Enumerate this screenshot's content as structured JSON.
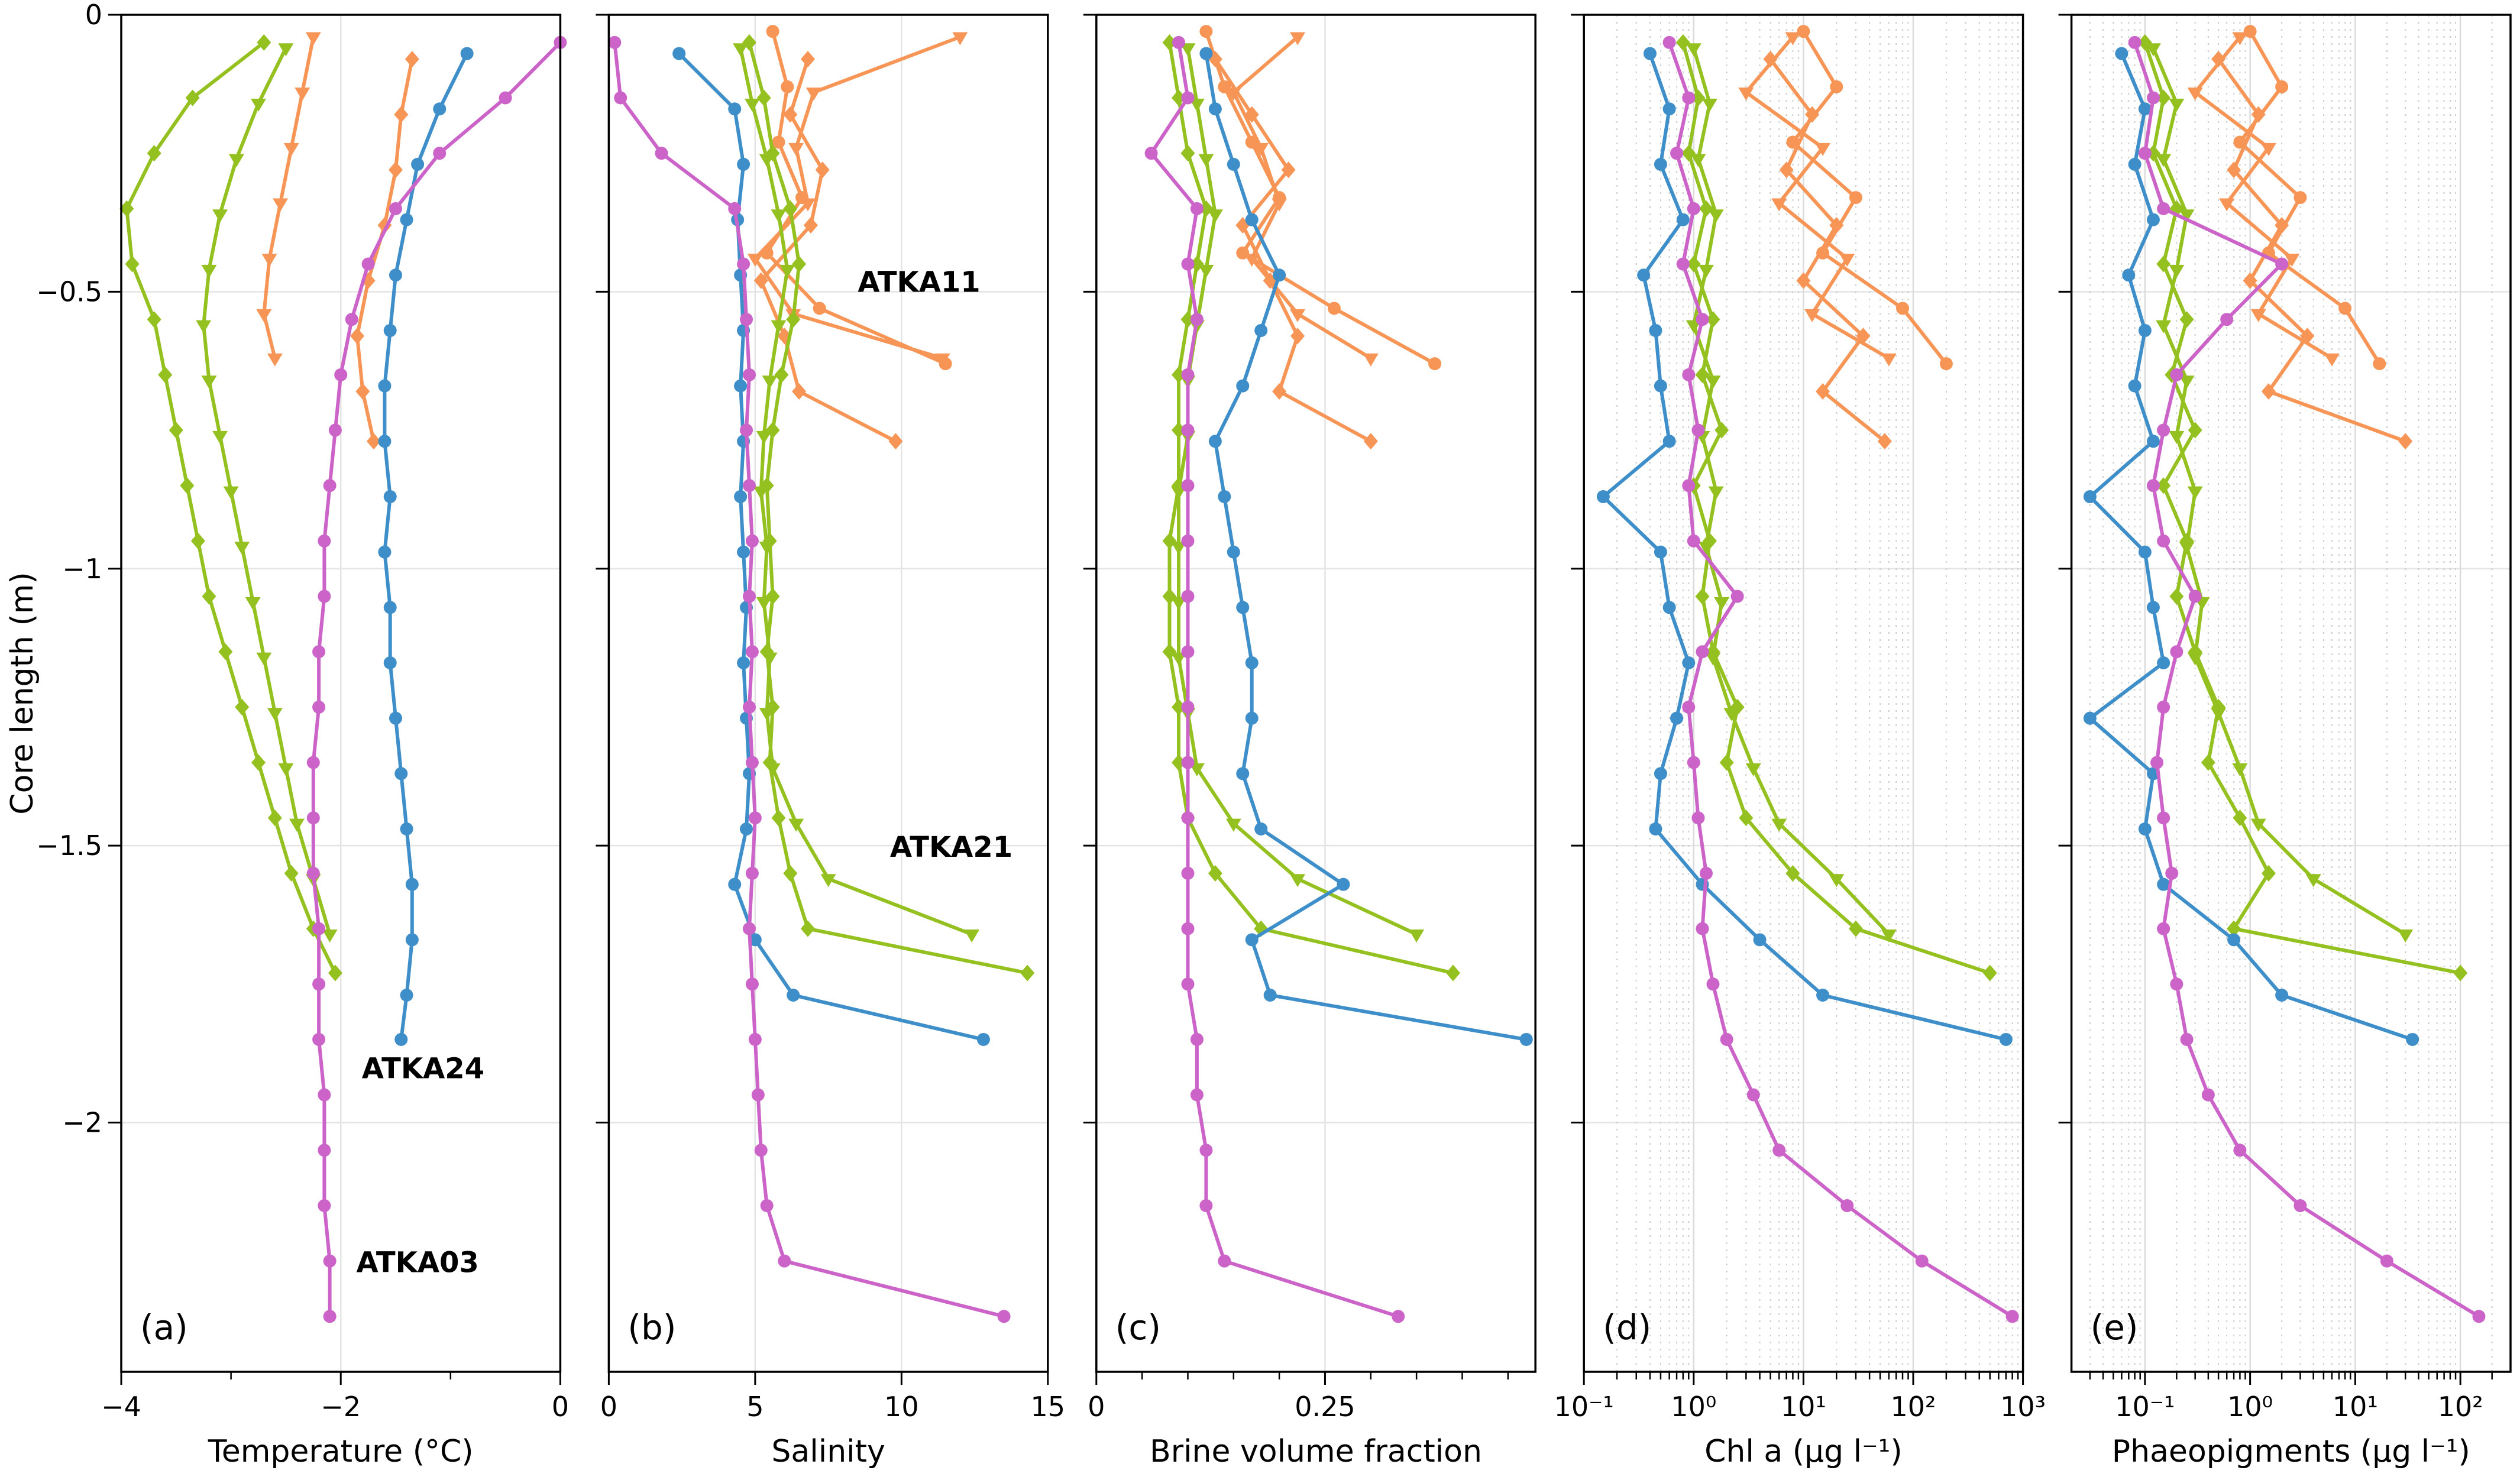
{
  "figure": {
    "kind": "five-panel sea-ice core profile figure"
  },
  "chart_data": {
    "type": "line",
    "orientation": "vertical-profiles",
    "y_axis": {
      "label": "Core length (m)",
      "range": [
        0,
        -2.45
      ],
      "ticks": [
        {
          "v": 0,
          "label": "0"
        },
        {
          "v": -0.5,
          "label": "−0.5"
        },
        {
          "v": -1,
          "label": "−1"
        },
        {
          "v": -1.5,
          "label": "−1.5"
        },
        {
          "v": -2,
          "label": "−2"
        }
      ]
    },
    "stations": {
      "ATKA03": {
        "label": "ATKA03",
        "color": "#CB63C8",
        "marker": "circle",
        "depths": [
          -0.05,
          -0.15,
          -0.25,
          -0.35,
          -0.45,
          -0.55,
          -0.65,
          -0.75,
          -0.85,
          -0.95,
          -1.05,
          -1.15,
          -1.25,
          -1.35,
          -1.45,
          -1.55,
          -1.65,
          -1.75,
          -1.85,
          -1.95,
          -2.05,
          -2.15,
          -2.25,
          -2.35
        ]
      },
      "ATKA24": {
        "label": "ATKA24",
        "color": "#3D8EC9",
        "marker": "circle",
        "depths": [
          -0.07,
          -0.17,
          -0.27,
          -0.37,
          -0.47,
          -0.57,
          -0.67,
          -0.77,
          -0.87,
          -0.97,
          -1.07,
          -1.17,
          -1.27,
          -1.37,
          -1.47,
          -1.57,
          -1.67,
          -1.77,
          -1.85
        ]
      },
      "ATKA21_A": {
        "label": "ATKA21",
        "color": "#94C11F",
        "marker": "diamond",
        "depths": [
          -0.05,
          -0.15,
          -0.25,
          -0.35,
          -0.45,
          -0.55,
          -0.65,
          -0.75,
          -0.85,
          -0.95,
          -1.05,
          -1.15,
          -1.25,
          -1.35,
          -1.45,
          -1.55,
          -1.65,
          -1.73
        ]
      },
      "ATKA21_B": {
        "label": "ATKA21",
        "color": "#94C11F",
        "marker": "triangle",
        "depths": [
          -0.06,
          -0.16,
          -0.26,
          -0.36,
          -0.46,
          -0.56,
          -0.66,
          -0.76,
          -0.86,
          -0.96,
          -1.06,
          -1.16,
          -1.26,
          -1.36,
          -1.46,
          -1.56,
          -1.66
        ]
      },
      "ATKA11_A": {
        "label": "ATKA11",
        "color": "#F79556",
        "marker": "triangle",
        "depths": [
          -0.04,
          -0.14,
          -0.24,
          -0.34,
          -0.44,
          -0.54,
          -0.62
        ]
      },
      "ATKA11_B": {
        "label": "ATKA11",
        "color": "#F79556",
        "marker": "diamond",
        "depths": [
          -0.08,
          -0.18,
          -0.28,
          -0.38,
          -0.48,
          -0.58,
          -0.68,
          -0.77
        ]
      },
      "ATKA11_C": {
        "label": "ATKA11",
        "color": "#F79556",
        "marker": "circle",
        "depths": [
          -0.03,
          -0.13,
          -0.23,
          -0.33,
          -0.43,
          -0.53,
          -0.63
        ]
      }
    },
    "panels": [
      {
        "id": "a",
        "letter": "(a)",
        "xlabel": "Temperature (°C)",
        "scale": "linear",
        "xlim": [
          -4,
          0
        ],
        "xticks": [
          {
            "v": -4,
            "label": "−4"
          },
          {
            "v": -2,
            "label": "−2"
          },
          {
            "v": 0,
            "label": "0"
          }
        ],
        "xminor": [
          -3,
          -1
        ],
        "series": [
          {
            "station": "ATKA11_A",
            "x": [
              -2.25,
              -2.35,
              -2.45,
              -2.55,
              -2.65,
              -2.7,
              -2.6
            ]
          },
          {
            "station": "ATKA11_B",
            "x": [
              -1.35,
              -1.45,
              -1.5,
              -1.6,
              -1.75,
              -1.85,
              -1.8,
              -1.7
            ]
          },
          {
            "station": "ATKA21_A",
            "x": [
              -2.7,
              -3.35,
              -3.7,
              -3.95,
              -3.9,
              -3.7,
              -3.6,
              -3.5,
              -3.4,
              -3.3,
              -3.2,
              -3.05,
              -2.9,
              -2.75,
              -2.6,
              -2.45,
              -2.25,
              -2.05
            ]
          },
          {
            "station": "ATKA21_B",
            "x": [
              -2.5,
              -2.75,
              -2.95,
              -3.1,
              -3.2,
              -3.25,
              -3.2,
              -3.1,
              -3.0,
              -2.9,
              -2.8,
              -2.7,
              -2.6,
              -2.5,
              -2.4,
              -2.25,
              -2.1
            ]
          },
          {
            "station": "ATKA24",
            "x": [
              -0.85,
              -1.1,
              -1.3,
              -1.4,
              -1.5,
              -1.55,
              -1.6,
              -1.6,
              -1.55,
              -1.6,
              -1.55,
              -1.55,
              -1.5,
              -1.45,
              -1.4,
              -1.35,
              -1.35,
              -1.4,
              -1.45
            ]
          },
          {
            "station": "ATKA03",
            "x": [
              0.0,
              -0.5,
              -1.1,
              -1.5,
              -1.75,
              -1.9,
              -2.0,
              -2.05,
              -2.1,
              -2.15,
              -2.15,
              -2.2,
              -2.2,
              -2.25,
              -2.25,
              -2.25,
              -2.2,
              -2.2,
              -2.2,
              -2.15,
              -2.15,
              -2.15,
              -2.1,
              -2.1
            ]
          }
        ],
        "annotations": [
          {
            "text": "ATKA24",
            "color": "#3D8EC9",
            "x": -1.25,
            "depth": -1.92
          },
          {
            "text": "ATKA03",
            "color": "#CB63C8",
            "x": -1.3,
            "depth": -2.27
          }
        ]
      },
      {
        "id": "b",
        "letter": "(b)",
        "xlabel": "Salinity",
        "scale": "linear",
        "xlim": [
          0,
          15
        ],
        "xticks": [
          {
            "v": 0,
            "label": "0"
          },
          {
            "v": 5,
            "label": "5"
          },
          {
            "v": 10,
            "label": "10"
          },
          {
            "v": 15,
            "label": "15"
          }
        ],
        "xminor": [],
        "series": [
          {
            "station": "ATKA11_A",
            "x": [
              12.0,
              7.0,
              6.4,
              6.8,
              5.0,
              6.3,
              11.4
            ]
          },
          {
            "station": "ATKA11_B",
            "x": [
              6.8,
              6.2,
              7.3,
              6.9,
              5.2,
              6.0,
              6.5,
              9.8
            ]
          },
          {
            "station": "ATKA11_C",
            "x": [
              5.6,
              6.1,
              5.8,
              6.6,
              5.4,
              7.2,
              11.5
            ]
          },
          {
            "station": "ATKA21_A",
            "x": [
              4.8,
              5.3,
              5.6,
              6.2,
              6.5,
              6.3,
              5.9,
              5.6,
              5.4,
              5.5,
              5.6,
              5.4,
              5.6,
              5.5,
              5.8,
              6.2,
              6.8,
              14.3
            ]
          },
          {
            "station": "ATKA21_B",
            "x": [
              4.5,
              4.9,
              5.4,
              5.8,
              6.1,
              5.8,
              5.5,
              5.3,
              5.2,
              5.4,
              5.3,
              5.5,
              5.4,
              5.6,
              6.4,
              7.5,
              12.4
            ]
          },
          {
            "station": "ATKA24",
            "x": [
              2.4,
              4.3,
              4.6,
              4.4,
              4.5,
              4.6,
              4.5,
              4.6,
              4.5,
              4.6,
              4.7,
              4.6,
              4.7,
              4.8,
              4.7,
              4.3,
              5.0,
              6.3,
              12.8
            ]
          },
          {
            "station": "ATKA03",
            "x": [
              0.2,
              0.4,
              1.8,
              4.3,
              4.6,
              4.7,
              4.8,
              4.7,
              4.8,
              4.9,
              4.8,
              4.9,
              4.8,
              4.9,
              5.0,
              4.9,
              4.8,
              4.9,
              5.0,
              5.1,
              5.2,
              5.4,
              6.0,
              13.5
            ]
          }
        ],
        "annotations": [
          {
            "text": "ATKA11",
            "color": "#F79556",
            "x": 10.6,
            "depth": -0.5
          },
          {
            "text": "ATKA21",
            "color": "#94C11F",
            "x": 11.7,
            "depth": -1.52
          }
        ]
      },
      {
        "id": "c",
        "letter": "(c)",
        "xlabel": "Brine volume fraction",
        "scale": "linear",
        "xlim": [
          0,
          0.48
        ],
        "xticks": [
          {
            "v": 0,
            "label": "0"
          },
          {
            "v": 0.25,
            "label": "0.25"
          }
        ],
        "xminor": [
          0.05,
          0.1,
          0.15,
          0.2,
          0.3,
          0.35,
          0.4,
          0.45
        ],
        "series": [
          {
            "station": "ATKA11_A",
            "x": [
              0.22,
              0.15,
              0.18,
              0.2,
              0.17,
              0.22,
              0.3
            ]
          },
          {
            "station": "ATKA11_B",
            "x": [
              0.13,
              0.17,
              0.21,
              0.16,
              0.19,
              0.22,
              0.2,
              0.3
            ]
          },
          {
            "station": "ATKA11_C",
            "x": [
              0.12,
              0.14,
              0.17,
              0.2,
              0.16,
              0.26,
              0.37
            ]
          },
          {
            "station": "ATKA21_A",
            "x": [
              0.08,
              0.09,
              0.1,
              0.12,
              0.11,
              0.1,
              0.09,
              0.09,
              0.09,
              0.08,
              0.08,
              0.08,
              0.09,
              0.09,
              0.1,
              0.13,
              0.18,
              0.39
            ]
          },
          {
            "station": "ATKA21_B",
            "x": [
              0.1,
              0.11,
              0.12,
              0.13,
              0.12,
              0.11,
              0.1,
              0.1,
              0.09,
              0.09,
              0.09,
              0.09,
              0.1,
              0.11,
              0.15,
              0.22,
              0.35
            ]
          },
          {
            "station": "ATKA24",
            "x": [
              0.12,
              0.13,
              0.15,
              0.17,
              0.2,
              0.18,
              0.16,
              0.13,
              0.14,
              0.15,
              0.16,
              0.17,
              0.17,
              0.16,
              0.18,
              0.27,
              0.17,
              0.19,
              0.47
            ]
          },
          {
            "station": "ATKA03",
            "x": [
              0.09,
              0.1,
              0.06,
              0.11,
              0.1,
              0.11,
              0.1,
              0.1,
              0.1,
              0.1,
              0.1,
              0.1,
              0.1,
              0.1,
              0.1,
              0.1,
              0.1,
              0.1,
              0.11,
              0.11,
              0.12,
              0.12,
              0.14,
              0.33
            ]
          }
        ],
        "annotations": []
      },
      {
        "id": "d",
        "letter": "(d)",
        "xlabel": "Chl a (µg l⁻¹)",
        "scale": "log",
        "xlim": [
          0.1,
          1000
        ],
        "xticks": [
          {
            "v": 0.1,
            "label": "10⁻¹"
          },
          {
            "v": 1,
            "label": "10⁰"
          },
          {
            "v": 10,
            "label": "10¹"
          },
          {
            "v": 100,
            "label": "10²"
          },
          {
            "v": 1000,
            "label": "10³"
          }
        ],
        "xminor": [],
        "series": [
          {
            "station": "ATKA11_A",
            "x": [
              8,
              3,
              15,
              6,
              25,
              12,
              60
            ]
          },
          {
            "station": "ATKA11_B",
            "x": [
              5,
              12,
              7,
              20,
              10,
              35,
              15,
              55
            ]
          },
          {
            "station": "ATKA11_C",
            "x": [
              10,
              20,
              8,
              30,
              15,
              80,
              200
            ]
          },
          {
            "station": "ATKA21_A",
            "x": [
              0.8,
              1.1,
              0.9,
              1.3,
              1.0,
              1.5,
              1.2,
              1.8,
              1.0,
              1.4,
              1.2,
              1.5,
              2.5,
              2.0,
              3.0,
              8,
              30,
              500
            ]
          },
          {
            "station": "ATKA21_B",
            "x": [
              1.0,
              1.4,
              1.1,
              1.6,
              1.3,
              1.0,
              1.5,
              1.2,
              1.6,
              1.3,
              1.8,
              1.5,
              2.2,
              3.5,
              6,
              20,
              60
            ]
          },
          {
            "station": "ATKA24",
            "x": [
              0.4,
              0.6,
              0.5,
              0.8,
              0.35,
              0.45,
              0.5,
              0.6,
              0.15,
              0.5,
              0.6,
              0.9,
              0.7,
              0.5,
              0.45,
              1.2,
              4.0,
              15,
              700
            ]
          },
          {
            "station": "ATKA03",
            "x": [
              0.6,
              0.9,
              0.7,
              1.0,
              0.8,
              1.2,
              0.9,
              1.1,
              0.9,
              1.0,
              2.5,
              1.2,
              0.9,
              1.0,
              1.1,
              1.3,
              1.2,
              1.5,
              2.0,
              3.5,
              6.0,
              25,
              120,
              800
            ]
          }
        ],
        "annotations": []
      },
      {
        "id": "e",
        "letter": "(e)",
        "xlabel": "Phaeopigments (µg l⁻¹)",
        "scale": "log",
        "xlim": [
          0.02,
          300
        ],
        "xticks": [
          {
            "v": 0.1,
            "label": "10⁻¹"
          },
          {
            "v": 1,
            "label": "10⁰"
          },
          {
            "v": 10,
            "label": "10¹"
          },
          {
            "v": 100,
            "label": "10²"
          }
        ],
        "xminor": [],
        "series": [
          {
            "station": "ATKA11_A",
            "x": [
              0.8,
              0.3,
              1.5,
              0.6,
              2.5,
              1.2,
              6
            ]
          },
          {
            "station": "ATKA11_B",
            "x": [
              0.5,
              1.2,
              0.7,
              2.0,
              1.0,
              3.5,
              1.5,
              30
            ]
          },
          {
            "station": "ATKA11_C",
            "x": [
              1.0,
              2.0,
              0.8,
              3.0,
              1.5,
              8,
              17
            ]
          },
          {
            "station": "ATKA21_A",
            "x": [
              0.1,
              0.15,
              0.12,
              0.2,
              0.15,
              0.25,
              0.18,
              0.3,
              0.15,
              0.25,
              0.2,
              0.3,
              0.5,
              0.4,
              0.8,
              1.5,
              0.7,
              100
            ]
          },
          {
            "station": "ATKA21_B",
            "x": [
              0.12,
              0.2,
              0.15,
              0.25,
              0.2,
              0.15,
              0.25,
              0.2,
              0.3,
              0.25,
              0.35,
              0.3,
              0.5,
              0.8,
              1.2,
              4,
              30
            ]
          },
          {
            "station": "ATKA24",
            "x": [
              0.06,
              0.1,
              0.08,
              0.12,
              0.07,
              0.1,
              0.08,
              0.12,
              0.03,
              0.1,
              0.12,
              0.15,
              0.03,
              0.12,
              0.1,
              0.15,
              0.7,
              2.0,
              35
            ]
          },
          {
            "station": "ATKA03",
            "x": [
              0.08,
              0.12,
              0.1,
              0.15,
              2.0,
              0.6,
              0.2,
              0.15,
              0.12,
              0.15,
              0.3,
              0.2,
              0.15,
              0.13,
              0.15,
              0.18,
              0.15,
              0.2,
              0.25,
              0.4,
              0.8,
              3,
              20,
              150
            ]
          }
        ],
        "annotations": []
      }
    ]
  }
}
